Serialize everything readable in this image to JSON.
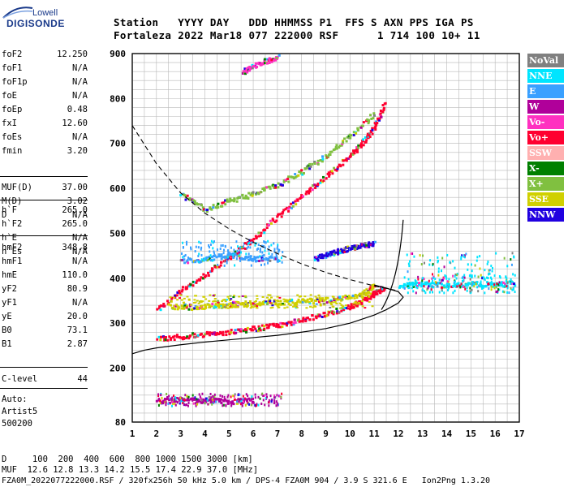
{
  "logo": {
    "line1": "Lowell",
    "line2": "DIGISONDE"
  },
  "header": {
    "line1": "Station   YYYY DAY   DDD HHMMSS P1  FFS S AXN PPS IGA PS",
    "line2": "Fortaleza 2022 Mar18 077 222000 RSF      1 714 100 10+ 11"
  },
  "params_group1": [
    {
      "name": "foF2",
      "value": "12.250"
    },
    {
      "name": "foF1",
      "value": "N/A"
    },
    {
      "name": "foF1p",
      "value": "N/A"
    },
    {
      "name": "foE",
      "value": "N/A"
    },
    {
      "name": "foEp",
      "value": "0.48"
    },
    {
      "name": "fxI",
      "value": "12.60"
    },
    {
      "name": "foEs",
      "value": "N/A"
    },
    {
      "name": "fmin",
      "value": "3.20"
    }
  ],
  "params_group2": [
    {
      "name": "MUF(D)",
      "value": "37.00"
    },
    {
      "name": "M(D)",
      "value": "3.02"
    },
    {
      "name": "D",
      "value": "N/A"
    }
  ],
  "params_group3": [
    {
      "name": "h`F",
      "value": "265.0"
    },
    {
      "name": "h`F2",
      "value": "265.0"
    },
    {
      "name": "h`E",
      "value": "N/A"
    },
    {
      "name": "h`Es",
      "value": "N/A"
    }
  ],
  "params_group4": [
    {
      "name": "hmF2",
      "value": "348.8"
    },
    {
      "name": "hmF1",
      "value": "N/A"
    },
    {
      "name": "hmE",
      "value": "110.0"
    },
    {
      "name": "yF2",
      "value": "80.9"
    },
    {
      "name": "yF1",
      "value": "N/A"
    },
    {
      "name": "yE",
      "value": "20.0"
    },
    {
      "name": "B0",
      "value": "73.1"
    },
    {
      "name": "B1",
      "value": "2.87"
    }
  ],
  "params_group5": [
    {
      "name": "C-level",
      "value": "44"
    }
  ],
  "auto": {
    "line1": "Auto:",
    "line2": "Artist5",
    "line3": "500200"
  },
  "legend": [
    {
      "label": "NoVal",
      "color": "#808080"
    },
    {
      "label": "NNE",
      "color": "#00e5ff"
    },
    {
      "label": "E",
      "color": "#3aa0ff"
    },
    {
      "label": "W",
      "color": "#b0009a"
    },
    {
      "label": "Vo-",
      "color": "#ff30c0"
    },
    {
      "label": "Vo+",
      "color": "#ff0030"
    },
    {
      "label": "SSW",
      "color": "#ffb0b0"
    },
    {
      "label": "X-",
      "color": "#008000"
    },
    {
      "label": "X+",
      "color": "#80c040"
    },
    {
      "label": "SSE",
      "color": "#d0d000"
    },
    {
      "label": "NNW",
      "color": "#2000e0"
    }
  ],
  "bottom": {
    "line1": "D     100  200  400  600  800 1000 1500 3000 [km]",
    "line2": "MUF  12.6 12.8 13.3 14.2 15.5 17.4 22.9 37.0 [MHz]",
    "line3": "FZA0M_2022077222000.RSF / 320fx256h 50 kHz 5.0 km / DPS-4 FZA0M 904 / 3.9 S 321.6 E   Ion2Png 1.3.20"
  },
  "chart_data": {
    "type": "scatter",
    "xlabel": "",
    "ylabel": "",
    "xlim": [
      1,
      17
    ],
    "ylim": [
      80,
      900
    ],
    "x_ticks": [
      1,
      2,
      3,
      4,
      5,
      6,
      7,
      8,
      9,
      10,
      11,
      12,
      13,
      14,
      15,
      16,
      17
    ],
    "y_ticks": [
      80,
      200,
      300,
      400,
      500,
      600,
      700,
      800,
      900
    ],
    "series": [
      {
        "name": "Vo+",
        "color": "#ff0030",
        "x": [
          2.0,
          3.0,
          4.0,
          5.0,
          6.0,
          7.0,
          8.0,
          9.0,
          10.0,
          10.5,
          11.0,
          11.4
        ],
        "y": [
          268,
          272,
          278,
          283,
          290,
          298,
          310,
          323,
          340,
          352,
          368,
          383
        ]
      },
      {
        "name": "Vo+",
        "color": "#ff0030",
        "x": [
          2.0,
          3.0,
          4.0,
          5.0,
          6.0,
          7.0,
          8.0,
          9.0,
          10.0,
          10.5,
          11.0,
          11.4
        ],
        "y": [
          330,
          375,
          410,
          450,
          490,
          540,
          585,
          630,
          675,
          705,
          740,
          790
        ]
      },
      {
        "name": "X+",
        "color": "#80c040",
        "x": [
          3.0,
          4.0,
          5.0,
          6.0,
          7.0,
          8.0,
          9.0,
          10.0,
          11.0
        ],
        "y": [
          590,
          555,
          575,
          590,
          610,
          640,
          675,
          720,
          770
        ]
      },
      {
        "name": "SSE",
        "color": "#d0d000",
        "x": [
          2.5,
          3.5,
          4.5,
          5.5,
          6.5,
          7.5,
          8.5,
          9.5,
          10.5,
          11.0
        ],
        "y": [
          340,
          338,
          342,
          345,
          348,
          350,
          352,
          356,
          368,
          385
        ]
      },
      {
        "name": "E",
        "color": "#3aa0ff",
        "x": [
          3.0,
          4.0,
          5.0,
          6.0,
          7.0
        ],
        "y": [
          440,
          445,
          455,
          445,
          445
        ]
      },
      {
        "name": "NNW",
        "color": "#2000e0",
        "x": [
          8.5,
          9.0,
          9.5,
          10.0,
          10.5,
          11.0
        ],
        "y": [
          445,
          455,
          462,
          470,
          475,
          480
        ]
      },
      {
        "name": "NNE",
        "color": "#00e5ff",
        "x": [
          12.0,
          13.0,
          14.0,
          15.0,
          16.0,
          16.8
        ],
        "y": [
          385,
          390,
          385,
          390,
          388,
          392
        ]
      },
      {
        "name": "W",
        "color": "#b0009a",
        "x": [
          2.0,
          3.0,
          4.0,
          5.0,
          6.0
        ],
        "y": [
          128,
          132,
          130,
          128,
          130
        ]
      },
      {
        "name": "Vo-",
        "color": "#ff30c0",
        "x": [
          5.5,
          6.0,
          6.5,
          7.0
        ],
        "y": [
          860,
          875,
          885,
          895
        ]
      }
    ],
    "profile_curve": {
      "f": [
        1.0,
        1.5,
        2.0,
        3.0,
        4.0,
        5.0,
        6.0,
        7.0,
        8.0,
        9.0,
        10.0,
        11.0,
        11.5,
        12.0,
        12.2,
        12.0,
        11.5,
        11.0
      ],
      "h": [
        232,
        240,
        245,
        252,
        258,
        263,
        268,
        273,
        280,
        288,
        300,
        318,
        330,
        345,
        358,
        370,
        378,
        385
      ]
    },
    "muf_curve": {
      "f": [
        1.0,
        2.0,
        3.0,
        4.0,
        5.0,
        6.0,
        7.0,
        8.0,
        9.0,
        10.0,
        11.0,
        12.0
      ],
      "h": [
        740,
        655,
        590,
        545,
        510,
        480,
        455,
        432,
        413,
        397,
        383,
        372
      ]
    }
  }
}
